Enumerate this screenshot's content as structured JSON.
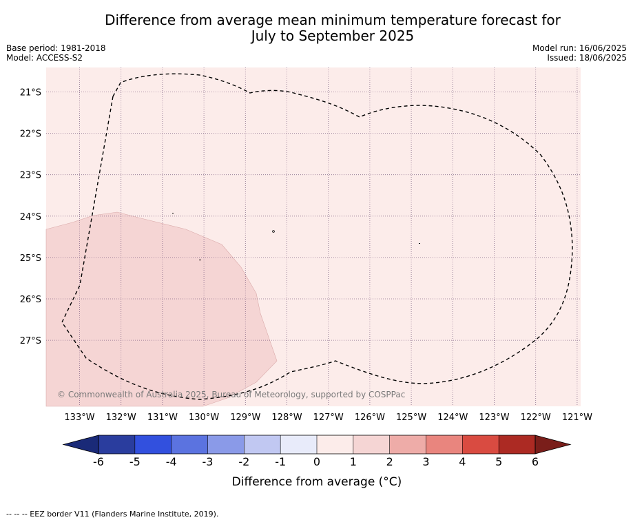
{
  "title_line1": "Difference from average mean minimum temperature forecast for",
  "title_line2": "July to September 2025",
  "base_period": "Base period: 1981-2018",
  "model": "Model: ACCESS-S2",
  "model_run": "Model run: 16/06/2025",
  "issued": "Issued: 18/06/2025",
  "lon_labels": [
    "133°W",
    "132°W",
    "131°W",
    "130°W",
    "129°W",
    "128°W",
    "127°W",
    "126°W",
    "125°W",
    "124°W",
    "123°W",
    "122°W",
    "121°W"
  ],
  "lat_labels": [
    "21°S",
    "22°S",
    "23°S",
    "24°S",
    "25°S",
    "26°S",
    "27°S"
  ],
  "copyright": "© Commonwealth of Australia 2025, Bureau of Meteorology, supported by COSPPac",
  "colorbar": {
    "ticks": [
      "-6",
      "-5",
      "-4",
      "-3",
      "-2",
      "-1",
      "0",
      "1",
      "2",
      "3",
      "4",
      "5",
      "6"
    ],
    "colors": [
      "#2a3d9e",
      "#3250de",
      "#5b73e0",
      "#8a9ae8",
      "#c1c8f2",
      "#e8ebfa",
      "#fcecea",
      "#f5d5d4",
      "#eeaca8",
      "#e9857e",
      "#d94b41",
      "#ac2a23"
    ],
    "under_color": "#1a2a78",
    "over_color": "#7a1e1a",
    "label": "Difference from average ($^\\circ$C)",
    "label_text": "Difference from average (°C)"
  },
  "legend_note": "-- -- -- EEZ border V11 (Flanders Marine Institute, 2019).",
  "map_colors": {
    "background": "#fcecea",
    "warm_patch": "#f5d5d4",
    "eez_line": "#000000"
  }
}
